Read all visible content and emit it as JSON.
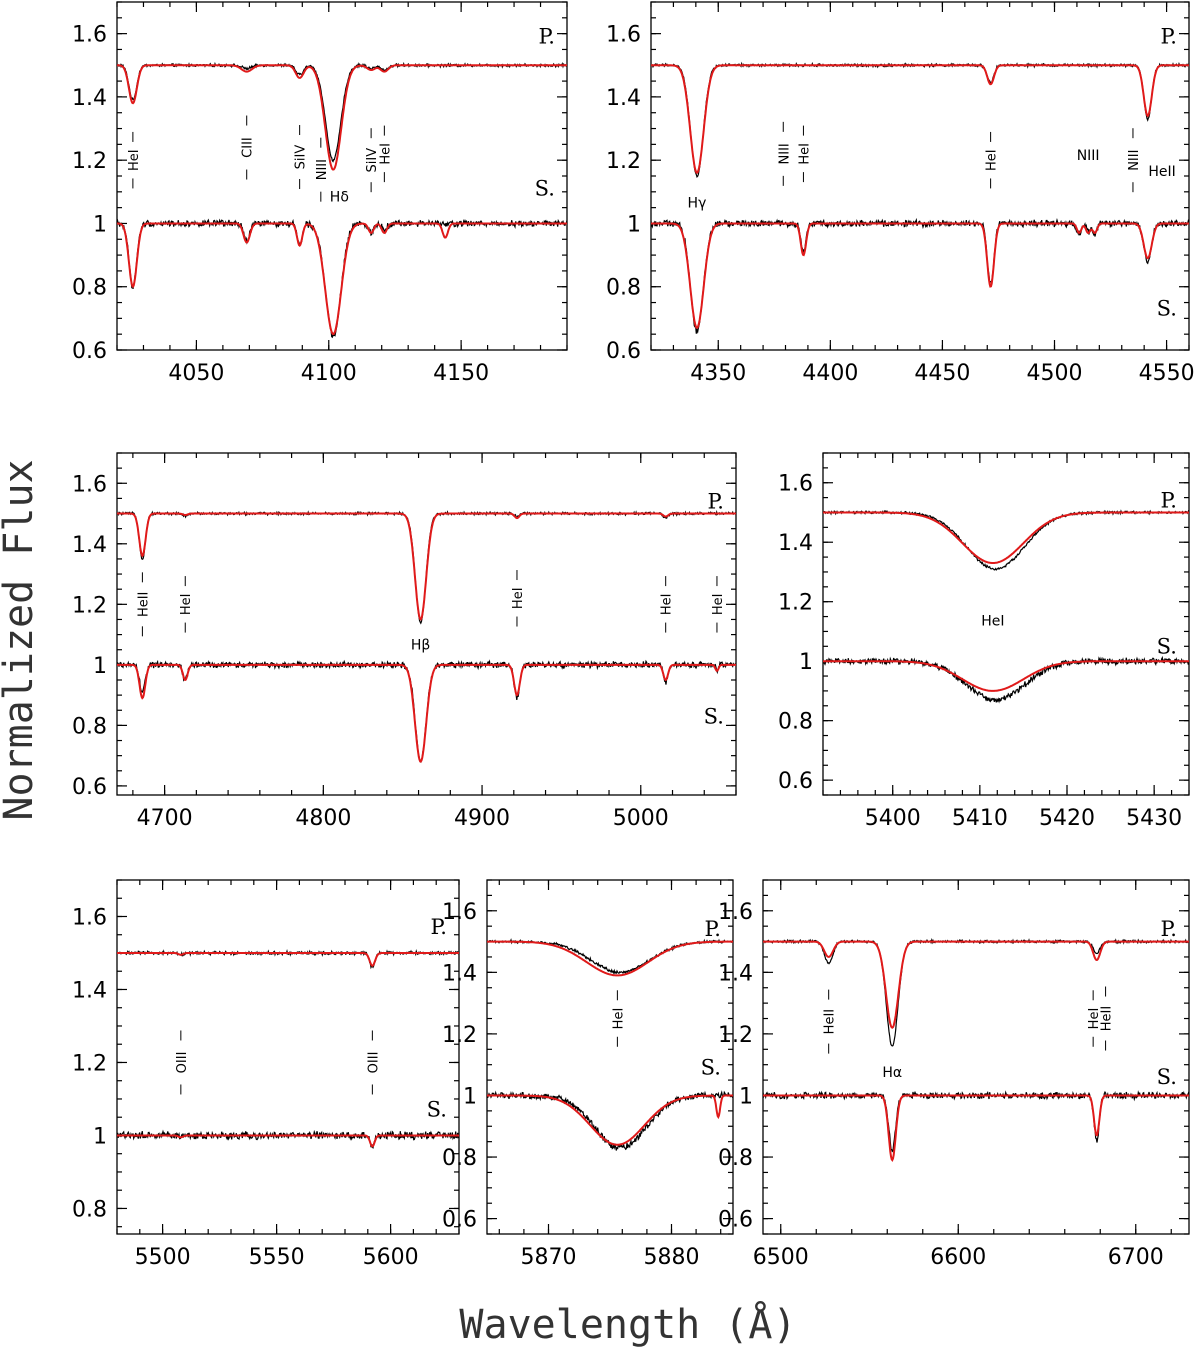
{
  "figure": {
    "xlabel": "Wavelength (Å)",
    "ylabel": "Normalized Flux",
    "colors": {
      "observed": "#000000",
      "model": "#e01a1a"
    }
  },
  "chart_data": [
    {
      "id": "p1",
      "type": "line",
      "xlim": [
        4020,
        4190
      ],
      "ylim": [
        0.6,
        1.7
      ],
      "xticks": [
        4050,
        4100,
        4150
      ],
      "yticks": [
        0.6,
        0.8,
        1.0,
        1.2,
        1.4,
        1.6
      ],
      "ytick_labels": [
        "0.6",
        "0.8",
        "1",
        "1.2",
        "1.4",
        "1.6"
      ],
      "top_label": "P.",
      "bottom_label": "S.",
      "top_y": 1.6,
      "bottom_y": 1.12,
      "series": [
        {
          "name": "Primary",
          "offset": 1.5,
          "lines": [
            [
              4026,
              0.12,
              1.5,
              0.11
            ],
            [
              4069,
              0.02,
              2.0,
              0.01
            ],
            [
              4089,
              0.04,
              1.5,
              0.03
            ],
            [
              4101.7,
              0.33,
              3.0,
              0.3
            ],
            [
              4116,
              0.015,
              1.5,
              0.01
            ],
            [
              4121,
              0.02,
              1.5,
              0.015
            ]
          ]
        },
        {
          "name": "Secondary",
          "offset": 1.0,
          "lines": [
            [
              4026,
              0.2,
              1.5,
              0.2
            ],
            [
              4069,
              0.06,
              1.2,
              0.055
            ],
            [
              4089,
              0.07,
              1.0,
              0.065
            ],
            [
              4101.7,
              0.35,
              3.0,
              0.36
            ],
            [
              4116,
              0.03,
              1.0,
              0.03
            ],
            [
              4121,
              0.03,
              1.0,
              0.02
            ],
            [
              4144,
              0.045,
              1.0,
              0.005
            ]
          ]
        }
      ],
      "annotations": [
        {
          "text": "HeI",
          "x": 4026,
          "y": 1.2,
          "rot": true
        },
        {
          "text": "CIII",
          "x": 4069,
          "y": 1.24,
          "rot": true
        },
        {
          "text": "SiIV",
          "x": 4089,
          "y": 1.21,
          "rot": true
        },
        {
          "text": "NIII",
          "x": 4097,
          "y": 1.17,
          "rot": true
        },
        {
          "text": "Hδ",
          "x": 4104,
          "y": 1.07,
          "rot": false
        },
        {
          "text": "SiIV",
          "x": 4116,
          "y": 1.2,
          "rot": true
        },
        {
          "text": "HeI",
          "x": 4121,
          "y": 1.22,
          "rot": true
        }
      ]
    },
    {
      "id": "p2",
      "type": "line",
      "xlim": [
        4320,
        4560
      ],
      "ylim": [
        0.6,
        1.7
      ],
      "xticks": [
        4350,
        4400,
        4450,
        4500,
        4550
      ],
      "yticks": [
        0.6,
        0.8,
        1.0,
        1.2,
        1.4,
        1.6
      ],
      "ytick_labels": [
        "0.6",
        "0.8",
        "1",
        "1.2",
        "1.4",
        "1.6"
      ],
      "top_label": "P.",
      "bottom_label": "S.",
      "top_y": 1.6,
      "bottom_y": 0.74,
      "series": [
        {
          "name": "Primary",
          "offset": 1.5,
          "lines": [
            [
              4340.5,
              0.34,
              3.0,
              0.35
            ],
            [
              4471.5,
              0.06,
              1.5,
              0.055
            ],
            [
              4541.6,
              0.16,
              1.8,
              0.17
            ]
          ]
        },
        {
          "name": "Secondary",
          "offset": 1.0,
          "lines": [
            [
              4340.5,
              0.33,
              3.0,
              0.34
            ],
            [
              4388,
              0.1,
              1.2,
              0.09
            ],
            [
              4471.5,
              0.2,
              1.5,
              0.19
            ],
            [
              4511,
              0.03,
              1.0,
              0.03
            ],
            [
              4515,
              0.03,
              1.0,
              0.025
            ],
            [
              4518,
              0.03,
              1.0,
              0.03
            ],
            [
              4541.6,
              0.11,
              1.8,
              0.12
            ]
          ]
        }
      ],
      "annotations": [
        {
          "text": "Hγ",
          "x": 4340.5,
          "y": 1.05,
          "rot": false
        },
        {
          "text": "NIII",
          "x": 4379,
          "y": 1.22,
          "rot": true
        },
        {
          "text": "HeI",
          "x": 4388,
          "y": 1.22,
          "rot": true
        },
        {
          "text": "HeI",
          "x": 4471.5,
          "y": 1.2,
          "rot": true
        },
        {
          "text": "NIII",
          "x": 4515,
          "y": 1.2,
          "rot": false
        },
        {
          "text": "NIII",
          "x": 4535,
          "y": 1.2,
          "rot": true
        },
        {
          "text": "HeII",
          "x": 4548,
          "y": 1.15,
          "rot": false
        }
      ]
    },
    {
      "id": "p3",
      "type": "line",
      "xlim": [
        4670,
        5060
      ],
      "ylim": [
        0.57,
        1.7
      ],
      "xticks": [
        4700,
        4800,
        4900,
        5000
      ],
      "yticks": [
        0.6,
        0.8,
        1.0,
        1.2,
        1.4,
        1.6
      ],
      "ytick_labels": [
        "0.6",
        "0.8",
        "1",
        "1.2",
        "1.4",
        "1.6"
      ],
      "top_label": "P.",
      "bottom_label": "S.",
      "top_y": 1.55,
      "bottom_y": 0.84,
      "series": [
        {
          "name": "Primary",
          "offset": 1.5,
          "lines": [
            [
              4686,
              0.14,
              2.0,
              0.15
            ],
            [
              4713,
              0.005,
              1.5,
              0.01
            ],
            [
              4861.3,
              0.35,
              3.5,
              0.36
            ],
            [
              4922,
              0.015,
              1.5,
              0.01
            ],
            [
              5015.7,
              0.01,
              1.5,
              0.015
            ]
          ]
        },
        {
          "name": "Secondary",
          "offset": 1.0,
          "lines": [
            [
              4686,
              0.11,
              1.8,
              0.09
            ],
            [
              4713,
              0.05,
              1.5,
              0.05
            ],
            [
              4861.3,
              0.32,
              3.5,
              0.32
            ],
            [
              4922,
              0.1,
              1.8,
              0.11
            ],
            [
              5015.7,
              0.05,
              1.5,
              0.06
            ],
            [
              5048,
              0.02,
              1.0,
              0.015
            ]
          ]
        }
      ],
      "annotations": [
        {
          "text": "HeII",
          "x": 4686,
          "y": 1.2,
          "rot": true
        },
        {
          "text": "HeI",
          "x": 4713,
          "y": 1.2,
          "rot": true
        },
        {
          "text": "Hβ",
          "x": 4861.3,
          "y": 1.05,
          "rot": false
        },
        {
          "text": "HeI",
          "x": 4922,
          "y": 1.22,
          "rot": true
        },
        {
          "text": "HeI",
          "x": 5015.7,
          "y": 1.2,
          "rot": true
        },
        {
          "text": "HeI",
          "x": 5048,
          "y": 1.2,
          "rot": true
        }
      ]
    },
    {
      "id": "p4",
      "type": "line",
      "xlim": [
        5392,
        5434
      ],
      "ylim": [
        0.55,
        1.7
      ],
      "xticks": [
        5400,
        5410,
        5420,
        5430
      ],
      "yticks": [
        0.6,
        0.8,
        1.0,
        1.2,
        1.4,
        1.6
      ],
      "ytick_labels": [
        "0.6",
        "0.8",
        "1",
        "1.2",
        "1.4",
        "1.6"
      ],
      "top_label": "P.",
      "bottom_label": "S.",
      "top_y": 1.55,
      "bottom_y": 1.06,
      "series": [
        {
          "name": "Primary",
          "offset": 1.5,
          "lines": [
            [
              5411.5,
              0.17,
              3.5,
              0.19
            ]
          ]
        },
        {
          "name": "Secondary",
          "offset": 1.0,
          "lines": [
            [
              5411.5,
              0.1,
              3.5,
              0.13
            ]
          ]
        }
      ],
      "annotations": [
        {
          "text": "HeI",
          "x": 5411.5,
          "y": 1.12,
          "rot": false
        }
      ]
    },
    {
      "id": "p5",
      "type": "line",
      "xlim": [
        5480,
        5630
      ],
      "ylim": [
        0.73,
        1.7
      ],
      "xticks": [
        5500,
        5550,
        5600
      ],
      "yticks": [
        0.8,
        1.0,
        1.2,
        1.4,
        1.6
      ],
      "ytick_labels": [
        "0.8",
        "1",
        "1.2",
        "1.4",
        "1.6"
      ],
      "top_label": "P.",
      "bottom_label": "S.",
      "top_y": 1.58,
      "bottom_y": 1.08,
      "series": [
        {
          "name": "Primary",
          "offset": 1.5,
          "lines": [
            [
              5508,
              0.005,
              1.0,
              0.005
            ],
            [
              5592,
              0.035,
              1.2,
              0.04
            ]
          ]
        },
        {
          "name": "Secondary",
          "offset": 1.0,
          "lines": [
            [
              5508,
              0.005,
              1.0,
              0.005
            ],
            [
              5592,
              0.03,
              1.0,
              0.03
            ]
          ]
        }
      ],
      "annotations": [
        {
          "text": "OIII",
          "x": 5508,
          "y": 1.2,
          "rot": true
        },
        {
          "text": "OIII",
          "x": 5592,
          "y": 1.2,
          "rot": true
        }
      ]
    },
    {
      "id": "p6",
      "type": "line",
      "xlim": [
        5865,
        5885
      ],
      "ylim": [
        0.55,
        1.7
      ],
      "xticks": [
        5870,
        5880
      ],
      "yticks": [
        0.6,
        0.8,
        1.0,
        1.2,
        1.4,
        1.6
      ],
      "ytick_labels": [
        "0.6",
        "0.8",
        "1",
        "1.2",
        "1.4",
        "1.6"
      ],
      "top_label": "P.",
      "bottom_label": "S.",
      "top_y": 1.55,
      "bottom_y": 1.1,
      "series": [
        {
          "name": "Primary",
          "offset": 1.5,
          "lines": [
            [
              5875.6,
              0.11,
              2.5,
              0.1
            ]
          ]
        },
        {
          "name": "Secondary",
          "offset": 1.0,
          "lines": [
            [
              5875.6,
              0.16,
              2.2,
              0.17
            ],
            [
              5883.8,
              0.07,
              0.15,
              0.0
            ]
          ]
        }
      ],
      "annotations": [
        {
          "text": "HeI",
          "x": 5875.6,
          "y": 1.25,
          "rot": true
        }
      ]
    },
    {
      "id": "p7",
      "type": "line",
      "xlim": [
        6490,
        6730
      ],
      "ylim": [
        0.55,
        1.7
      ],
      "xticks": [
        6500,
        6600,
        6700
      ],
      "yticks": [
        0.6,
        0.8,
        1.0,
        1.2,
        1.4,
        1.6
      ],
      "ytick_labels": [
        "0.6",
        "0.8",
        "1",
        "1.2",
        "1.4",
        "1.6"
      ],
      "top_label": "P.",
      "bottom_label": "S.",
      "top_y": 1.55,
      "bottom_y": 1.07,
      "series": [
        {
          "name": "Primary",
          "offset": 1.5,
          "lines": [
            [
              6527,
              0.05,
              2.5,
              0.07
            ],
            [
              6562.8,
              0.28,
              3.5,
              0.34
            ],
            [
              6678,
              0.06,
              2.0,
              0.04
            ]
          ]
        },
        {
          "name": "Secondary",
          "offset": 1.0,
          "lines": [
            [
              6562.8,
              0.21,
              2.0,
              0.18
            ],
            [
              6678,
              0.13,
              1.5,
              0.15
            ]
          ]
        }
      ],
      "annotations": [
        {
          "text": "HeII",
          "x": 6527,
          "y": 1.24,
          "rot": true
        },
        {
          "text": "Hα",
          "x": 6562.8,
          "y": 1.06,
          "rot": false
        },
        {
          "text": "HeI",
          "x": 6676,
          "y": 1.25,
          "rot": true
        },
        {
          "text": "HeII",
          "x": 6683,
          "y": 1.25,
          "rot": true
        }
      ]
    }
  ]
}
